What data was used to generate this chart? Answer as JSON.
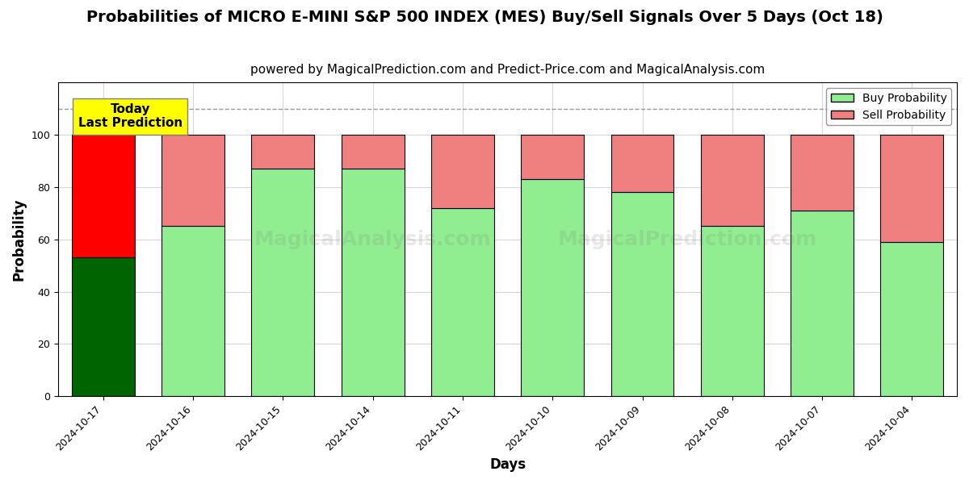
{
  "title": "Probabilities of MICRO E-MINI S&P 500 INDEX (MES) Buy/Sell Signals Over 5 Days (Oct 18)",
  "subtitle": "powered by MagicalPrediction.com and Predict-Price.com and MagicalAnalysis.com",
  "xlabel": "Days",
  "ylabel": "Probability",
  "dates": [
    "2024-10-17",
    "2024-10-16",
    "2024-10-15",
    "2024-10-14",
    "2024-10-11",
    "2024-10-10",
    "2024-10-09",
    "2024-10-08",
    "2024-10-07",
    "2024-10-04"
  ],
  "buy_values": [
    53,
    65,
    87,
    87,
    72,
    83,
    78,
    65,
    71,
    59
  ],
  "sell_values": [
    47,
    35,
    13,
    13,
    28,
    17,
    22,
    35,
    29,
    41
  ],
  "today_buy_color": "#006400",
  "today_sell_color": "#FF0000",
  "normal_buy_color": "#90EE90",
  "normal_sell_color": "#F08080",
  "today_annotation": "Today\nLast Prediction",
  "annotation_bg_color": "#FFFF00",
  "ylim": [
    0,
    120
  ],
  "yticks": [
    0,
    20,
    40,
    60,
    80,
    100
  ],
  "dashed_line_y": 110,
  "legend_buy_label": "Buy Probability",
  "legend_sell_label": "Sell Probability",
  "watermark_texts": [
    "MagicalAnalysis.com",
    "MagicalPrediction.com"
  ],
  "figsize": [
    12.0,
    6.0
  ],
  "dpi": 100,
  "title_fontsize": 14,
  "subtitle_fontsize": 11,
  "axis_label_fontsize": 12,
  "tick_fontsize": 9
}
